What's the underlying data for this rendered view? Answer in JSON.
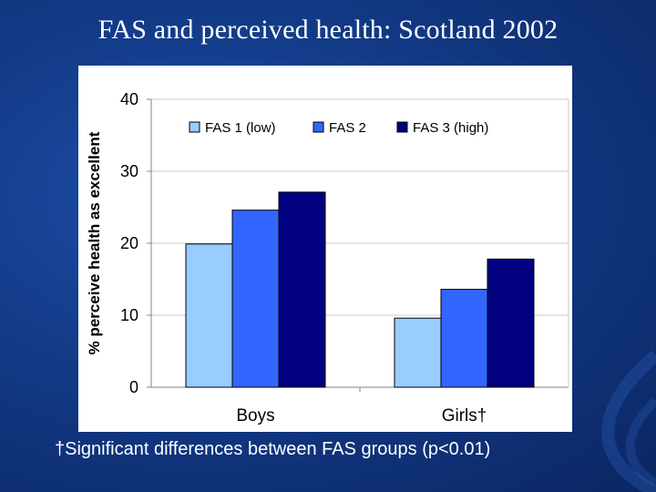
{
  "slide": {
    "title": "FAS and perceived health: Scotland 2002",
    "footnote": "†Significant differences between FAS groups (p<0.01)"
  },
  "colors": {
    "background": "#123a86",
    "fas1": "#99ccff",
    "fas2": "#3366ff",
    "fas3": "#000080"
  },
  "chart_data": {
    "type": "bar",
    "ylabel": "% perceive health as excellent",
    "xlabel": "",
    "ylim": [
      0,
      40
    ],
    "yticks": [
      0,
      10,
      20,
      30,
      40
    ],
    "grid": true,
    "legend_position": "top",
    "categories": [
      "Boys",
      "Girls†"
    ],
    "series": [
      {
        "name": "FAS 1 (low)",
        "color": "#99ccff",
        "values": [
          19.9,
          9.6
        ]
      },
      {
        "name": "FAS 2",
        "color": "#3366ff",
        "values": [
          24.6,
          13.6
        ]
      },
      {
        "name": "FAS 3 (high)",
        "color": "#000080",
        "values": [
          27.1,
          17.8
        ]
      }
    ]
  }
}
